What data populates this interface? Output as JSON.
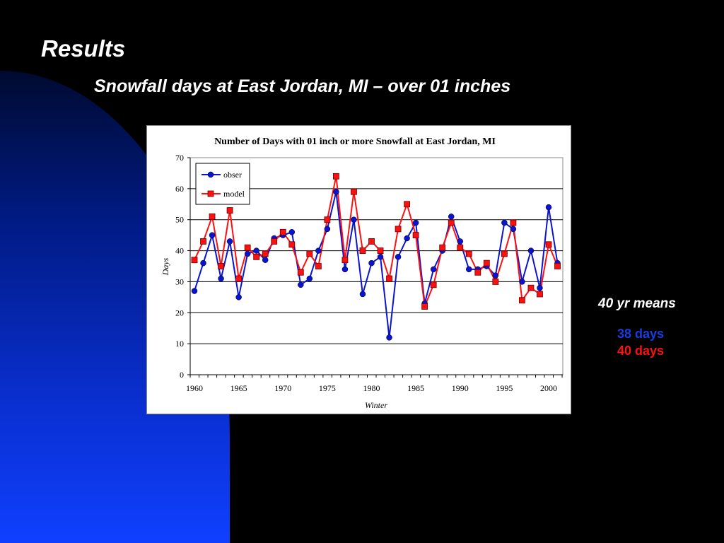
{
  "slide": {
    "title": "Results",
    "subtitle": "Snowfall days at East Jordan, MI – over 01 inches"
  },
  "means": {
    "label": "40 yr means",
    "obs": "38 days",
    "model": "40 days",
    "obs_color": "#1a3ce0",
    "model_color": "#ff1010"
  },
  "chart_data": {
    "type": "line",
    "title": "Number of Days with 01 inch or more Snowfall at East Jordan, MI",
    "xlabel": "Winter",
    "ylabel": "Days",
    "xlim": [
      1960,
      2001
    ],
    "ylim": [
      0,
      70
    ],
    "xticks": [
      "1960",
      "1965",
      "1970",
      "1975",
      "1980",
      "1985",
      "1990",
      "1995",
      "2000"
    ],
    "yticks": [
      "0",
      "10",
      "20",
      "30",
      "40",
      "50",
      "60",
      "70"
    ],
    "grid": true,
    "legend": "top-left",
    "x": [
      1960,
      1961,
      1962,
      1963,
      1964,
      1965,
      1966,
      1967,
      1968,
      1969,
      1970,
      1971,
      1972,
      1973,
      1974,
      1975,
      1976,
      1977,
      1978,
      1979,
      1980,
      1981,
      1982,
      1983,
      1984,
      1985,
      1986,
      1987,
      1988,
      1989,
      1990,
      1991,
      1992,
      1993,
      1994,
      1995,
      1996,
      1997,
      1998,
      1999,
      2000,
      2001
    ],
    "series": [
      {
        "name": "obser",
        "color": "#0a14d0",
        "values": [
          27,
          36,
          45,
          31,
          43,
          25,
          39,
          40,
          37,
          44,
          45,
          46,
          29,
          31,
          40,
          47,
          59,
          34,
          50,
          26,
          36,
          38,
          12,
          38,
          44,
          49,
          23,
          34,
          40,
          51,
          43,
          34,
          34,
          35,
          32,
          49,
          47,
          30,
          40,
          28,
          54,
          36
        ]
      },
      {
        "name": "model",
        "color": "#ff1010",
        "values": [
          37,
          43,
          51,
          35,
          53,
          31,
          41,
          38,
          39,
          43,
          46,
          42,
          33,
          39,
          35,
          50,
          64,
          37,
          59,
          40,
          43,
          40,
          31,
          47,
          55,
          45,
          22,
          29,
          41,
          49,
          41,
          39,
          33,
          36,
          30,
          39,
          49,
          24,
          28,
          26,
          42,
          35
        ]
      }
    ]
  }
}
